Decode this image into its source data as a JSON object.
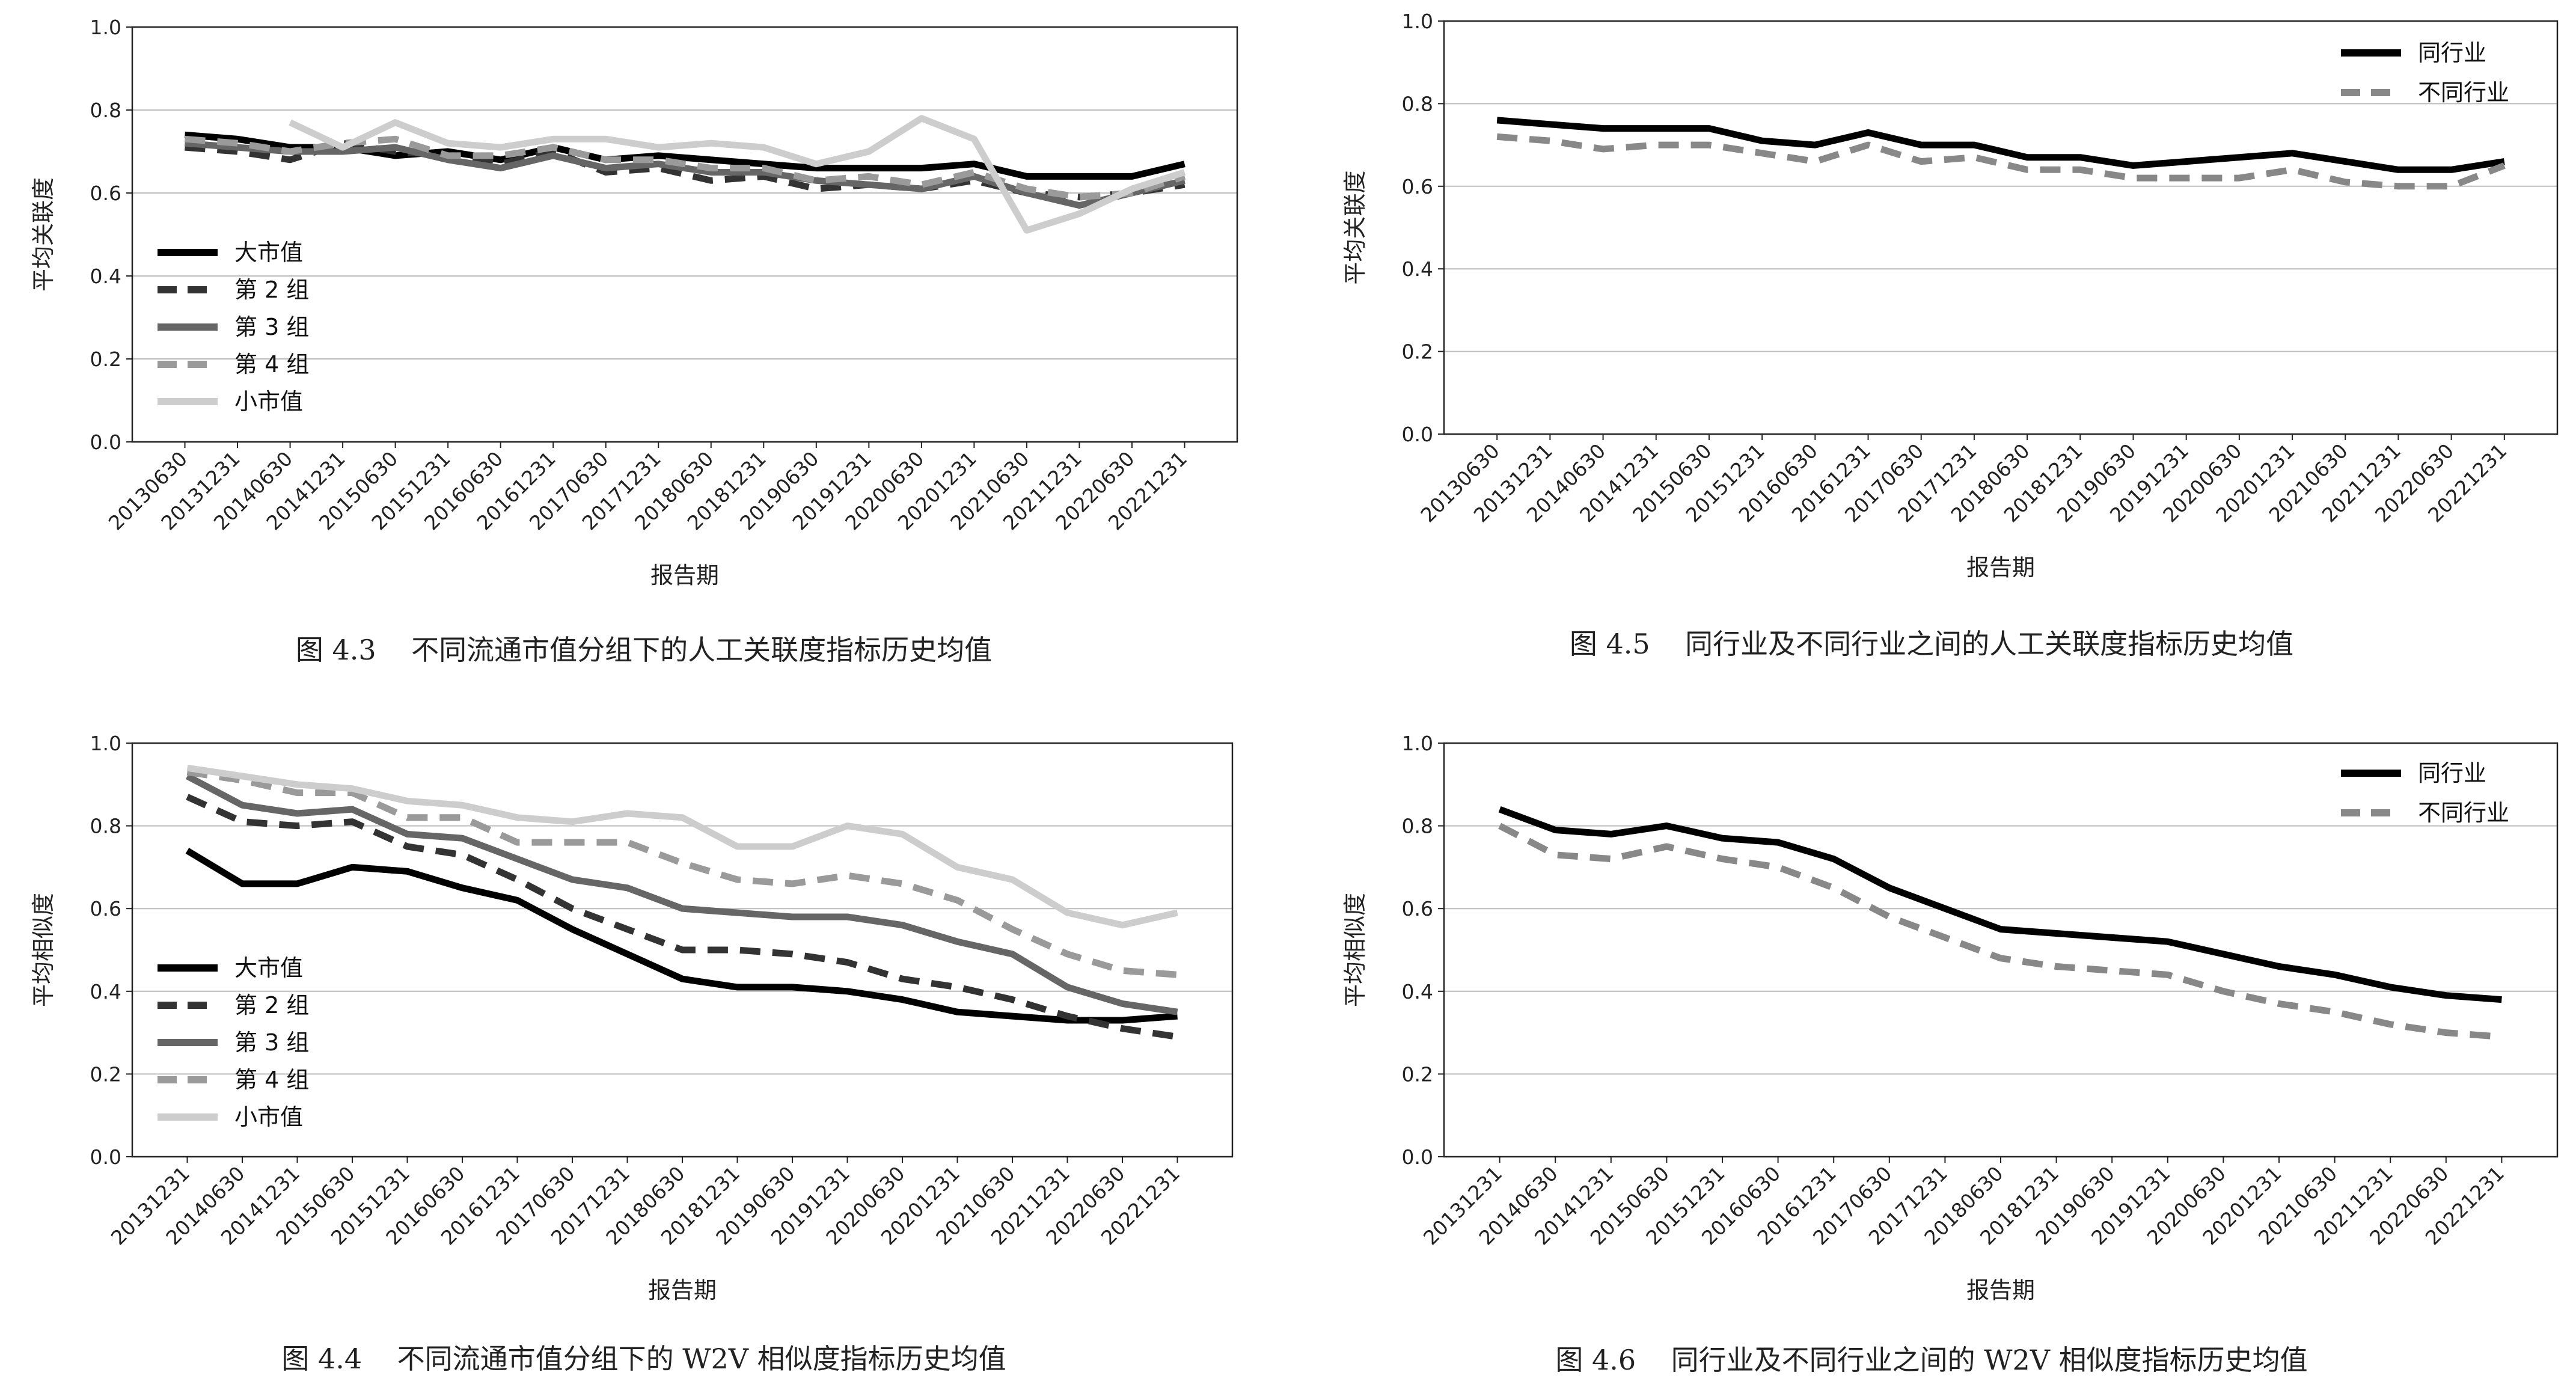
{
  "chart_data": [
    {
      "id": "fig43",
      "type": "line",
      "caption": "图 4.3    不同流通市值分组下的人工关联度指标历史均值",
      "xlabel": "报告期",
      "ylabel": "平均关联度",
      "ylim": [
        0,
        1.0
      ],
      "yticks": [
        "0.0",
        "0.2",
        "0.4",
        "0.6",
        "0.8",
        "1.0"
      ],
      "grid": true,
      "legend_position": "left",
      "categories": [
        "20130630",
        "20131231",
        "20140630",
        "20141231",
        "20150630",
        "20151231",
        "20160630",
        "20161231",
        "20170630",
        "20171231",
        "20180630",
        "20181231",
        "20190630",
        "20191231",
        "20200630",
        "20201231",
        "20210630",
        "20211231",
        "20220630",
        "20221231"
      ],
      "series": [
        {
          "name": "大市值",
          "color": "#000000",
          "dash": "solid",
          "values": [
            0.74,
            0.73,
            0.71,
            0.71,
            0.69,
            0.7,
            0.68,
            0.71,
            0.68,
            0.69,
            0.68,
            0.67,
            0.66,
            0.66,
            0.66,
            0.67,
            0.64,
            0.64,
            0.64,
            0.67
          ]
        },
        {
          "name": "第 2 组",
          "color": "#333333",
          "dash": "dash",
          "values": [
            0.71,
            0.7,
            0.68,
            0.72,
            0.7,
            0.69,
            0.67,
            0.7,
            0.65,
            0.66,
            0.63,
            0.64,
            0.61,
            0.62,
            0.61,
            0.63,
            0.6,
            0.59,
            0.6,
            0.62
          ]
        },
        {
          "name": "第 3 组",
          "color": "#666666",
          "dash": "solid",
          "values": [
            0.72,
            0.71,
            0.7,
            0.7,
            0.71,
            0.68,
            0.66,
            0.69,
            0.66,
            0.67,
            0.65,
            0.65,
            0.63,
            0.62,
            0.61,
            0.64,
            0.6,
            0.57,
            0.6,
            0.63
          ]
        },
        {
          "name": "第 4 组",
          "color": "#9a9a9a",
          "dash": "dash",
          "values": [
            0.73,
            0.72,
            0.7,
            0.72,
            0.73,
            0.69,
            0.69,
            0.71,
            0.68,
            0.68,
            0.66,
            0.66,
            0.63,
            0.64,
            0.62,
            0.65,
            0.61,
            0.59,
            0.6,
            0.64
          ]
        },
        {
          "name": "小市值",
          "color": "#cdcdcd",
          "dash": "solid",
          "values": [
            null,
            null,
            0.77,
            0.71,
            0.77,
            0.72,
            0.71,
            0.73,
            0.73,
            0.71,
            0.72,
            0.71,
            0.67,
            0.7,
            0.78,
            0.73,
            0.51,
            0.55,
            0.61,
            0.65
          ]
        }
      ]
    },
    {
      "id": "fig45",
      "type": "line",
      "caption": "图 4.5    同行业及不同行业之间的人工关联度指标历史均值",
      "xlabel": "报告期",
      "ylabel": "平均关联度",
      "ylim": [
        0,
        1.0
      ],
      "yticks": [
        "0.0",
        "0.2",
        "0.4",
        "0.6",
        "0.8",
        "1.0"
      ],
      "grid": true,
      "legend_position": "top-right",
      "categories": [
        "20130630",
        "20131231",
        "20140630",
        "20141231",
        "20150630",
        "20151231",
        "20160630",
        "20161231",
        "20170630",
        "20171231",
        "20180630",
        "20181231",
        "20190630",
        "20191231",
        "20200630",
        "20201231",
        "20210630",
        "20211231",
        "20220630",
        "20221231"
      ],
      "series": [
        {
          "name": "同行业",
          "color": "#000000",
          "dash": "solid",
          "values": [
            0.76,
            0.75,
            0.74,
            0.74,
            0.74,
            0.71,
            0.7,
            0.73,
            0.7,
            0.7,
            0.67,
            0.67,
            0.65,
            0.66,
            0.67,
            0.68,
            0.66,
            0.64,
            0.64,
            0.66
          ]
        },
        {
          "name": "不同行业",
          "color": "#888888",
          "dash": "dash",
          "values": [
            0.72,
            0.71,
            0.69,
            0.7,
            0.7,
            0.68,
            0.66,
            0.7,
            0.66,
            0.67,
            0.64,
            0.64,
            0.62,
            0.62,
            0.62,
            0.64,
            0.61,
            0.6,
            0.6,
            0.65
          ]
        }
      ]
    },
    {
      "id": "fig44",
      "type": "line",
      "caption": "图 4.4    不同流通市值分组下的 W2V 相似度指标历史均值",
      "xlabel": "报告期",
      "ylabel": "平均相似度",
      "ylim": [
        0,
        1.0
      ],
      "yticks": [
        "0.0",
        "0.2",
        "0.4",
        "0.6",
        "0.8",
        "1.0"
      ],
      "grid": true,
      "legend_position": "left",
      "categories": [
        "20131231",
        "20140630",
        "20141231",
        "20150630",
        "20151231",
        "20160630",
        "20161231",
        "20170630",
        "20171231",
        "20180630",
        "20181231",
        "20190630",
        "20191231",
        "20200630",
        "20201231",
        "20210630",
        "20211231",
        "20220630",
        "20221231"
      ],
      "series": [
        {
          "name": "大市值",
          "color": "#000000",
          "dash": "solid",
          "values": [
            0.74,
            0.66,
            0.66,
            0.7,
            0.69,
            0.65,
            0.62,
            0.55,
            0.49,
            0.43,
            0.41,
            0.41,
            0.4,
            0.38,
            0.35,
            0.34,
            0.33,
            0.33,
            0.34
          ]
        },
        {
          "name": "第 2 组",
          "color": "#333333",
          "dash": "dash",
          "values": [
            0.87,
            0.81,
            0.8,
            0.81,
            0.75,
            0.73,
            0.67,
            0.6,
            0.55,
            0.5,
            0.5,
            0.49,
            0.47,
            0.43,
            0.41,
            0.38,
            0.34,
            0.31,
            0.29
          ]
        },
        {
          "name": "第 3 组",
          "color": "#666666",
          "dash": "solid",
          "values": [
            0.92,
            0.85,
            0.83,
            0.84,
            0.78,
            0.77,
            0.72,
            0.67,
            0.65,
            0.6,
            0.59,
            0.58,
            0.58,
            0.56,
            0.52,
            0.49,
            0.41,
            0.37,
            0.35
          ]
        },
        {
          "name": "第 4 组",
          "color": "#9a9a9a",
          "dash": "dash",
          "values": [
            0.93,
            0.91,
            0.88,
            0.88,
            0.82,
            0.82,
            0.76,
            0.76,
            0.76,
            0.71,
            0.67,
            0.66,
            0.68,
            0.66,
            0.62,
            0.55,
            0.49,
            0.45,
            0.44
          ]
        },
        {
          "name": "小市值",
          "color": "#cdcdcd",
          "dash": "solid",
          "values": [
            0.94,
            0.92,
            0.9,
            0.89,
            0.86,
            0.85,
            0.82,
            0.81,
            0.83,
            0.82,
            0.75,
            0.75,
            0.8,
            0.78,
            0.7,
            0.67,
            0.59,
            0.56,
            0.59
          ]
        }
      ]
    },
    {
      "id": "fig46",
      "type": "line",
      "caption": "图 4.6    同行业及不同行业之间的 W2V 相似度指标历史均值",
      "xlabel": "报告期",
      "ylabel": "平均相似度",
      "ylim": [
        0,
        1.0
      ],
      "yticks": [
        "0.0",
        "0.2",
        "0.4",
        "0.6",
        "0.8",
        "1.0"
      ],
      "grid": true,
      "legend_position": "top-right",
      "categories": [
        "20131231",
        "20140630",
        "20141231",
        "20150630",
        "20151231",
        "20160630",
        "20161231",
        "20170630",
        "20171231",
        "20180630",
        "20181231",
        "20190630",
        "20191231",
        "20200630",
        "20201231",
        "20210630",
        "20211231",
        "20220630",
        "20221231"
      ],
      "series": [
        {
          "name": "同行业",
          "color": "#000000",
          "dash": "solid",
          "values": [
            0.84,
            0.79,
            0.78,
            0.8,
            0.77,
            0.76,
            0.72,
            0.65,
            0.6,
            0.55,
            0.54,
            0.53,
            0.52,
            0.49,
            0.46,
            0.44,
            0.41,
            0.39,
            0.38
          ]
        },
        {
          "name": "不同行业",
          "color": "#888888",
          "dash": "dash",
          "values": [
            0.8,
            0.73,
            0.72,
            0.75,
            0.72,
            0.7,
            0.65,
            0.58,
            0.53,
            0.48,
            0.46,
            0.45,
            0.44,
            0.4,
            0.37,
            0.35,
            0.32,
            0.3,
            0.29
          ]
        }
      ]
    }
  ]
}
